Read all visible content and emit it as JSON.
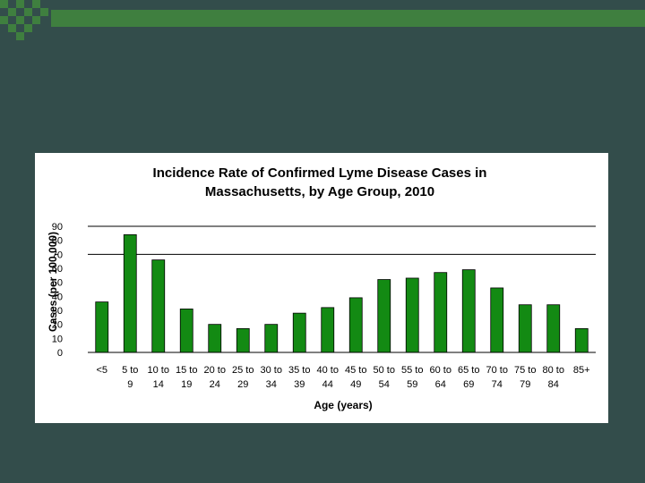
{
  "slide": {
    "background_color": "#334d4b",
    "decoration_color": "#3f7f3f"
  },
  "chart_data": {
    "type": "bar",
    "title": [
      "Incidence Rate of Confirmed Lyme Disease Cases in",
      "Massachusetts, by Age Group, 2010"
    ],
    "ylabel": "Cases (per 100,000)",
    "xlabel": "Age (years)",
    "ylim": [
      0,
      90
    ],
    "yticks": [
      0,
      10,
      20,
      30,
      40,
      50,
      60,
      70,
      80,
      90
    ],
    "grid": "horizontal lines at 70 and 90",
    "legend": "none",
    "bar_color": "#138a13",
    "categories": [
      [
        "<5"
      ],
      [
        "5 to",
        "9"
      ],
      [
        "10 to",
        "14"
      ],
      [
        "15 to",
        "19"
      ],
      [
        "20 to",
        "24"
      ],
      [
        "25 to",
        "29"
      ],
      [
        "30 to",
        "34"
      ],
      [
        "35 to",
        "39"
      ],
      [
        "40 to",
        "44"
      ],
      [
        "45 to",
        "49"
      ],
      [
        "50 to",
        "54"
      ],
      [
        "55 to",
        "59"
      ],
      [
        "60 to",
        "64"
      ],
      [
        "65 to",
        "69"
      ],
      [
        "70 to",
        "74"
      ],
      [
        "75 to",
        "79"
      ],
      [
        "80 to",
        "84"
      ],
      [
        "85+"
      ]
    ],
    "values": [
      36,
      84,
      66,
      31,
      20,
      17,
      20,
      28,
      32,
      39,
      52,
      53,
      57,
      59,
      46,
      34,
      34,
      17
    ]
  }
}
